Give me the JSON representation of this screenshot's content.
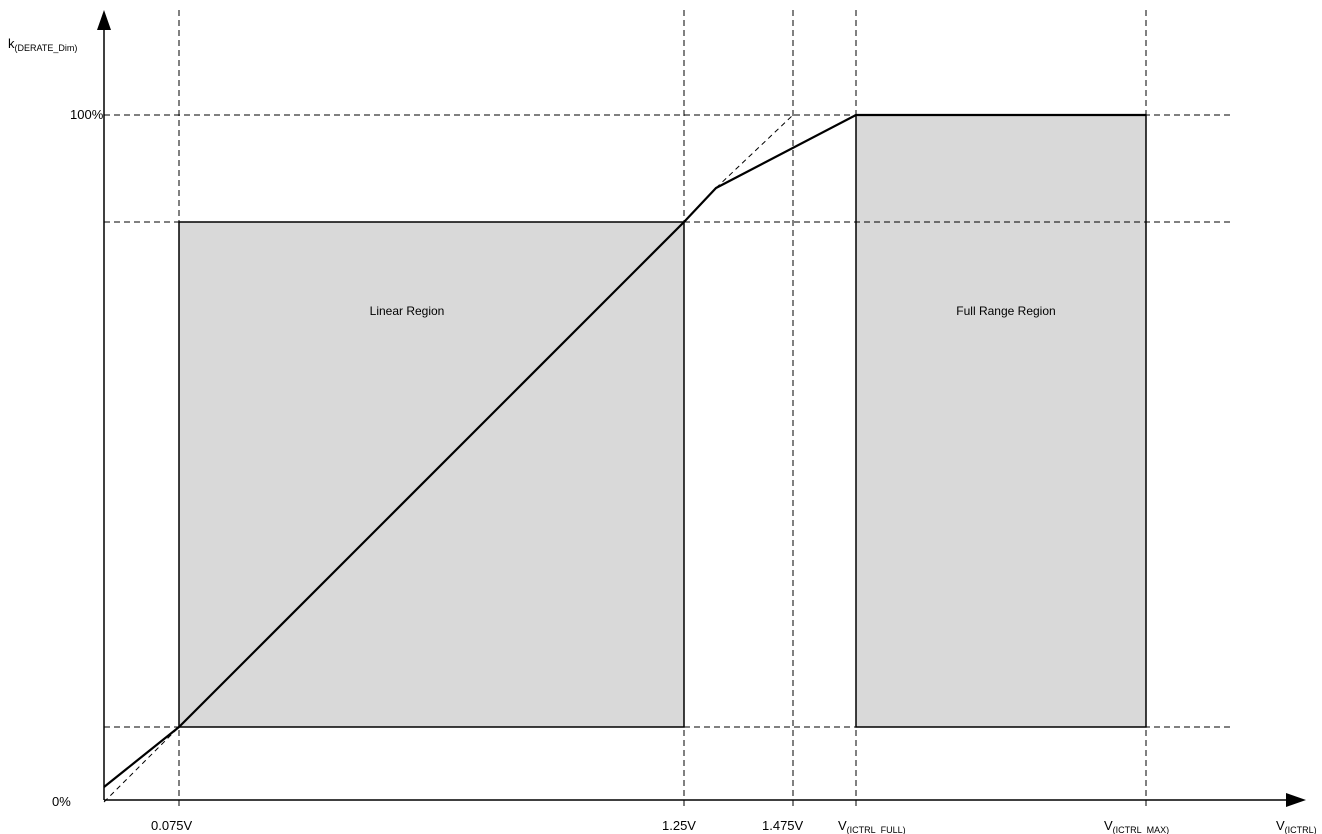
{
  "axes": {
    "y_label_main": "k",
    "y_label_sub": "(DERATE_Dim)",
    "x_label_main": "V",
    "x_label_sub": "(ICTRL)"
  },
  "y_ticks": {
    "top": "100%",
    "bottom": "0%"
  },
  "x_ticks": {
    "t1": "0.075V",
    "t2": "1.25V",
    "t3": "1.475V",
    "t4_main": "V",
    "t4_sub": "(ICTRL_FULL)",
    "t5_main": "V",
    "t5_sub": "(ICTRL_MAX)"
  },
  "regions": {
    "linear": "Linear Region",
    "full": "Full Range Region"
  },
  "colors": {
    "region_fill": "#d9d9d9",
    "line": "#000000"
  }
}
